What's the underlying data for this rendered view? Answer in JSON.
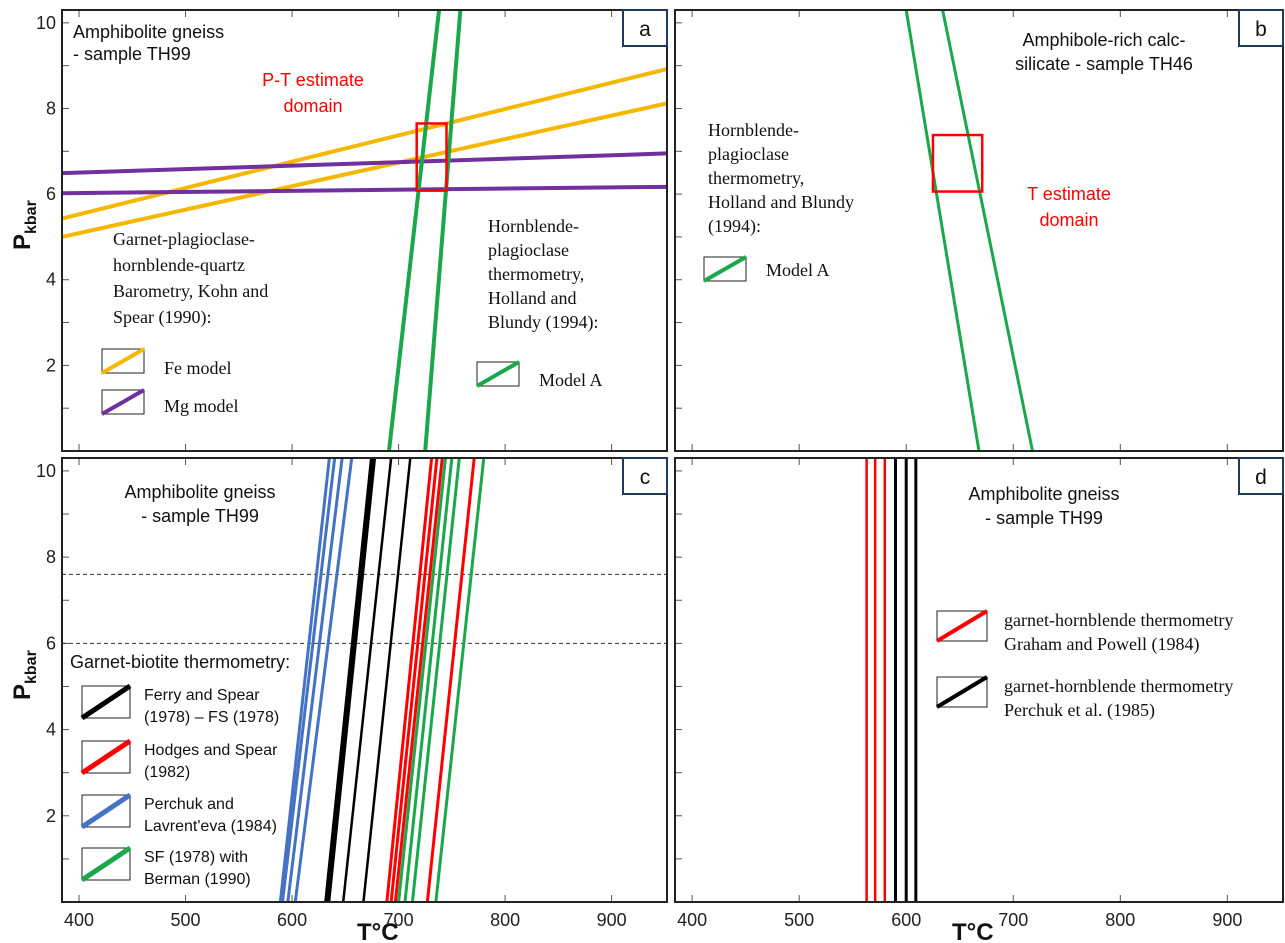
{
  "xlabel": "T°C",
  "ylabel_main": "P",
  "ylabel_sub": "kbar",
  "colors": {
    "orange": "#f5b800",
    "purple": "#7030a0",
    "green": "#1aa84a",
    "red": "#ff0000",
    "black": "#000000",
    "blue": "#4472c4"
  },
  "panels": {
    "a": {
      "label": "a",
      "title_lines": [
        "Amphibolite gneiss",
        "- sample TH99"
      ],
      "domain_lines": [
        "P-T estimate",
        "domain"
      ],
      "baro_lines": [
        "Garnet-plagioclase-",
        "hornblende-quartz",
        "Barometry, Kohn and",
        "Spear (1990):"
      ],
      "fe_label": "Fe model",
      "mg_label": "Mg model",
      "thermo_lines": [
        "Hornblende-",
        "plagioclase",
        "thermometry,",
        "Holland and",
        "Blundy (1994):"
      ],
      "model_a_label": "Model A"
    },
    "b": {
      "label": "b",
      "title_lines": [
        "Amphibole-rich calc-",
        "silicate - sample TH46"
      ],
      "thermo_lines": [
        "Hornblende-",
        "plagioclase",
        "thermometry,",
        "Holland and Blundy",
        "(1994):"
      ],
      "model_a_label": "Model A",
      "domain_lines": [
        "T estimate",
        "domain"
      ]
    },
    "c": {
      "label": "c",
      "title_lines": [
        "Amphibolite gneiss",
        "- sample TH99"
      ],
      "legend_title": "Garnet-biotite thermometry:",
      "legend": [
        {
          "lines": [
            "Ferry and Spear",
            "(1978) – FS (1978)"
          ],
          "color": "black"
        },
        {
          "lines": [
            "Hodges and Spear",
            "(1982)"
          ],
          "color": "red"
        },
        {
          "lines": [
            "Perchuk and",
            "Lavrent'eva (1984)"
          ],
          "color": "blue"
        },
        {
          "lines": [
            "SF (1978) with",
            "Berman (1990)"
          ],
          "color": "green"
        }
      ]
    },
    "d": {
      "label": "d",
      "title_lines": [
        "Amphibolite gneiss",
        "- sample TH99"
      ],
      "legend": [
        {
          "lines": [
            "garnet-hornblende thermometry",
            "Graham and Powell (1984)"
          ],
          "color": "red"
        },
        {
          "lines": [
            "garnet-hornblende thermometry",
            "Perchuk et al. (1985)"
          ],
          "color": "black"
        }
      ]
    }
  },
  "chart_data": [
    {
      "panel": "a",
      "type": "line",
      "xlabel": "",
      "ylabel": "P kbar",
      "xlim": [
        384,
        952
      ],
      "ylim": [
        0,
        10.3
      ],
      "y_ticks": [
        2,
        4,
        6,
        8,
        10
      ],
      "series": [
        {
          "name": "Fe model",
          "color": "orange",
          "width": 4,
          "lines": [
            [
              [
                384,
                5.0
              ],
              [
                952,
                8.12
              ]
            ],
            [
              [
                384,
                5.43
              ],
              [
                952,
                8.92
              ]
            ]
          ]
        },
        {
          "name": "Mg model",
          "color": "purple",
          "width": 4,
          "lines": [
            [
              [
                384,
                6.02
              ],
              [
                952,
                6.17
              ]
            ],
            [
              [
                384,
                6.49
              ],
              [
                952,
                6.95
              ]
            ]
          ]
        },
        {
          "name": "Model A",
          "color": "green",
          "width": 4,
          "lines": [
            [
              [
                691,
                0
              ],
              [
                738,
                10.3
              ]
            ],
            [
              [
                725,
                0
              ],
              [
                758,
                10.3
              ]
            ]
          ]
        }
      ],
      "box": {
        "T": [
          717,
          745
        ],
        "P": [
          6.08,
          7.65
        ],
        "color": "red"
      }
    },
    {
      "panel": "b",
      "type": "line",
      "xlim": [
        384,
        952
      ],
      "ylim": [
        0,
        10.3
      ],
      "y_ticks": [
        2,
        4,
        6,
        8,
        10
      ],
      "series": [
        {
          "name": "Model A",
          "color": "green",
          "width": 3,
          "lines": [
            [
              [
                600,
                10.3
              ],
              [
                668,
                0
              ]
            ],
            [
              [
                634,
                10.3
              ],
              [
                718,
                0
              ]
            ]
          ]
        }
      ],
      "box": {
        "T": [
          625,
          671
        ],
        "P": [
          6.06,
          7.38
        ],
        "color": "red"
      }
    },
    {
      "panel": "c",
      "type": "line",
      "xlabel": "T°C",
      "ylabel": "P kbar",
      "xlim": [
        384,
        952
      ],
      "ylim": [
        0,
        10.3
      ],
      "x_ticks": [
        400,
        500,
        600,
        700,
        800,
        900
      ],
      "y_ticks": [
        2,
        4,
        6,
        8,
        10
      ],
      "hlines": [
        6.0,
        7.6
      ],
      "series": [
        {
          "name": "Perchuk and Lavrent'eva (1984)",
          "color": "blue",
          "width": 3,
          "lines": [
            [
              [
                589,
                0
              ],
              [
                635,
                10.3
              ]
            ],
            [
              [
                591,
                0
              ],
              [
                640,
                10.3
              ]
            ],
            [
              [
                596,
                0
              ],
              [
                647,
                10.3
              ]
            ],
            [
              [
                603,
                0
              ],
              [
                656,
                10.3
              ]
            ]
          ]
        },
        {
          "name": "Ferry and Spear (1978) – FS (1978)",
          "color": "black",
          "width": 4,
          "lines": [
            [
              [
                632,
                0
              ],
              [
                675,
                10.3
              ]
            ],
            [
              [
                634,
                0
              ],
              [
                677,
                10.3
              ]
            ]
          ]
        },
        {
          "name": "Ferry and Spear (1978) – FS (1978)",
          "color": "black",
          "width": 2.5,
          "lines": [
            [
              [
                648,
                0
              ],
              [
                693,
                10.3
              ]
            ],
            [
              [
                667,
                0
              ],
              [
                711,
                10.3
              ]
            ]
          ]
        },
        {
          "name": "Hodges and Spear (1982)",
          "color": "red",
          "width": 3,
          "lines": [
            [
              [
                689,
                0
              ],
              [
                731,
                10.3
              ]
            ],
            [
              [
                693,
                0
              ],
              [
                736,
                10.3
              ]
            ],
            [
              [
                697,
                0
              ],
              [
                741,
                10.3
              ]
            ]
          ]
        },
        {
          "name": "SF (1978) with Berman (1990)",
          "color": "green",
          "width": 3,
          "lines": [
            [
              [
                700,
                0
              ],
              [
                744,
                10.3
              ]
            ],
            [
              [
                706,
                0
              ],
              [
                750,
                10.3
              ]
            ],
            [
              [
                713,
                0
              ],
              [
                757,
                10.3
              ]
            ]
          ]
        },
        {
          "name": "Hodges and Spear (1982)",
          "color": "red",
          "width": 3,
          "lines": [
            [
              [
                727,
                0
              ],
              [
                771,
                10.3
              ]
            ]
          ]
        },
        {
          "name": "SF (1978) with Berman (1990)",
          "color": "green",
          "width": 3,
          "lines": [
            [
              [
                735,
                0
              ],
              [
                780,
                10.3
              ]
            ]
          ]
        }
      ]
    },
    {
      "panel": "d",
      "type": "line",
      "xlabel": "T°C",
      "xlim": [
        384,
        952
      ],
      "ylim": [
        0,
        10.3
      ],
      "x_ticks": [
        400,
        500,
        600,
        700,
        800,
        900
      ],
      "y_ticks": [
        2,
        4,
        6,
        8,
        10
      ],
      "series": [
        {
          "name": "Graham and Powell (1984)",
          "color": "red",
          "width": 2.5,
          "vlines": [
            563,
            571,
            580
          ]
        },
        {
          "name": "Perchuk et al. (1985)",
          "color": "black",
          "width": 3,
          "vlines": [
            590,
            600,
            609
          ]
        }
      ]
    }
  ]
}
